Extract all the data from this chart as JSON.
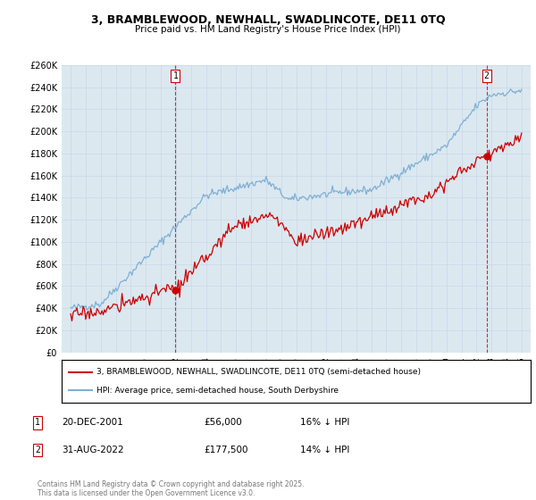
{
  "title_line1": "3, BRAMBLEWOOD, NEWHALL, SWADLINCOTE, DE11 0TQ",
  "title_line2": "Price paid vs. HM Land Registry's House Price Index (HPI)",
  "legend_line1": "3, BRAMBLEWOOD, NEWHALL, SWADLINCOTE, DE11 0TQ (semi-detached house)",
  "legend_line2": "HPI: Average price, semi-detached house, South Derbyshire",
  "annotation1_label": "1",
  "annotation1_date": "20-DEC-2001",
  "annotation1_price": "£56,000",
  "annotation1_hpi": "16% ↓ HPI",
  "annotation2_label": "2",
  "annotation2_date": "31-AUG-2022",
  "annotation2_price": "£177,500",
  "annotation2_hpi": "14% ↓ HPI",
  "footer": "Contains HM Land Registry data © Crown copyright and database right 2025.\nThis data is licensed under the Open Government Licence v3.0.",
  "ylim": [
    0,
    260000
  ],
  "ytick_values": [
    0,
    20000,
    40000,
    60000,
    80000,
    100000,
    120000,
    140000,
    160000,
    180000,
    200000,
    220000,
    240000,
    260000
  ],
  "house_color": "#cc0000",
  "hpi_color": "#7eb0d4",
  "vline_color": "#cc0000",
  "grid_color": "#c8d8e8",
  "background_color": "#ffffff",
  "plot_bg_color": "#dce8f0",
  "sale1_year": 2001.97,
  "sale1_price": 56000,
  "sale2_year": 2022.67,
  "sale2_price": 177500
}
